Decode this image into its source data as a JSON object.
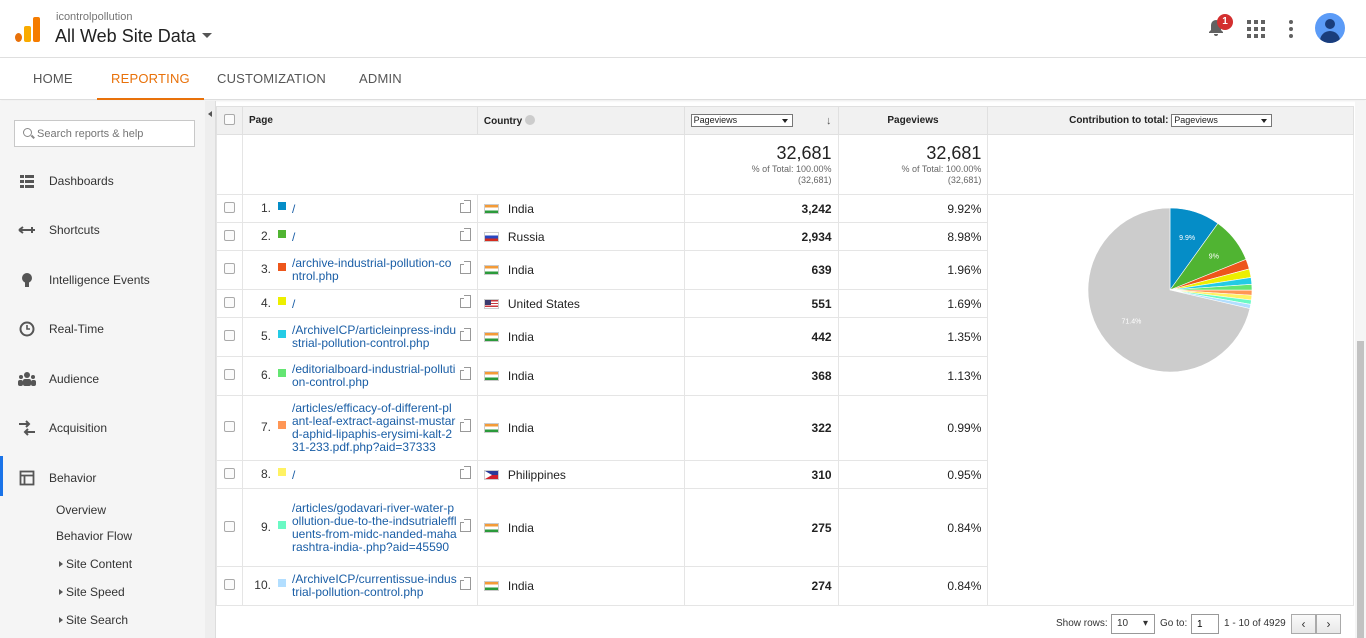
{
  "header": {
    "account": "icontrolpollution",
    "property": "All Web Site Data",
    "notifications": "1"
  },
  "nav": {
    "tabs": [
      "HOME",
      "REPORTING",
      "CUSTOMIZATION",
      "ADMIN"
    ],
    "active": "REPORTING"
  },
  "sidebar": {
    "search_placeholder": "Search reports & help",
    "items": [
      {
        "label": "Dashboards",
        "icon": "dashboard-icon"
      },
      {
        "label": "Shortcuts",
        "icon": "shortcuts-icon"
      },
      {
        "label": "Intelligence Events",
        "icon": "lightbulb-icon"
      },
      {
        "label": "Real-Time",
        "icon": "clock-icon"
      },
      {
        "label": "Audience",
        "icon": "audience-icon"
      },
      {
        "label": "Acquisition",
        "icon": "acquisition-icon"
      },
      {
        "label": "Behavior",
        "icon": "behavior-icon"
      }
    ],
    "subitems": [
      "Overview",
      "Behavior Flow",
      "Site Content",
      "Site Speed",
      "Site Search"
    ]
  },
  "table": {
    "headers": {
      "page": "Page",
      "country": "Country",
      "metric_select": "Pageviews",
      "pageviews": "Pageviews",
      "contribution": "Contribution to total:",
      "contribution_select": "Pageviews"
    },
    "total": {
      "value": "32,681",
      "pct": "% of Total: 100.00%",
      "abs": "(32,681)"
    },
    "rows": [
      {
        "num": "1.",
        "page": "/",
        "country": "India",
        "flag": "in",
        "color": "#058dc7",
        "value": "3,242",
        "pct": "9.92%"
      },
      {
        "num": "2.",
        "page": "/",
        "country": "Russia",
        "flag": "ru",
        "color": "#50b432",
        "value": "2,934",
        "pct": "8.98%"
      },
      {
        "num": "3.",
        "page": "/archive-industrial-pollution-control.php",
        "country": "India",
        "flag": "in",
        "color": "#ed561b",
        "value": "639",
        "pct": "1.96%"
      },
      {
        "num": "4.",
        "page": "/",
        "country": "United States",
        "flag": "us",
        "color": "#edef00",
        "value": "551",
        "pct": "1.69%"
      },
      {
        "num": "5.",
        "page": "/ArchiveICP/articleinpress-industrial-pollution-control.php",
        "country": "India",
        "flag": "in",
        "color": "#24cbe5",
        "value": "442",
        "pct": "1.35%"
      },
      {
        "num": "6.",
        "page": "/editorialboard-industrial-pollution-control.php",
        "country": "India",
        "flag": "in",
        "color": "#64e572",
        "value": "368",
        "pct": "1.13%"
      },
      {
        "num": "7.",
        "page": "/articles/efficacy-of-different-plant-leaf-extract-against-mustard-aphid-lipaphis-erysimi-kalt-231-233.pdf.php?aid=37333",
        "country": "India",
        "flag": "in",
        "color": "#ff9655",
        "value": "322",
        "pct": "0.99%"
      },
      {
        "num": "8.",
        "page": "/",
        "country": "Philippines",
        "flag": "ph",
        "color": "#fff263",
        "value": "310",
        "pct": "0.95%"
      },
      {
        "num": "9.",
        "page": "/articles/godavari-river-water-pollution-due-to-the-indsutrialeffluents-from-midc-nanded-maharashtra-india-.php?aid=45590",
        "country": "India",
        "flag": "in",
        "color": "#6af9c4",
        "value": "275",
        "pct": "0.84%"
      },
      {
        "num": "10.",
        "page": "/ArchiveICP/currentissue-industrial-pollution-control.php",
        "country": "India",
        "flag": "in",
        "color": "#b2deff",
        "value": "274",
        "pct": "0.84%"
      }
    ]
  },
  "chart_data": {
    "type": "pie",
    "slices": [
      {
        "label": "9.9%",
        "value": 9.92,
        "color": "#058dc7"
      },
      {
        "label": "9%",
        "value": 8.98,
        "color": "#50b432"
      },
      {
        "label": "",
        "value": 1.96,
        "color": "#ed561b"
      },
      {
        "label": "",
        "value": 1.69,
        "color": "#edef00"
      },
      {
        "label": "",
        "value": 1.35,
        "color": "#24cbe5"
      },
      {
        "label": "",
        "value": 1.13,
        "color": "#64e572"
      },
      {
        "label": "",
        "value": 0.99,
        "color": "#ff9655"
      },
      {
        "label": "",
        "value": 0.95,
        "color": "#fff263"
      },
      {
        "label": "",
        "value": 0.84,
        "color": "#6af9c4"
      },
      {
        "label": "",
        "value": 0.84,
        "color": "#b2deff"
      },
      {
        "label": "71.4%",
        "value": 71.35,
        "color": "#cccccc"
      }
    ]
  },
  "footer": {
    "show_rows_label": "Show rows:",
    "show_rows_value": "10",
    "goto_label": "Go to:",
    "goto_value": "1",
    "range": "1 - 10 of 4929"
  }
}
